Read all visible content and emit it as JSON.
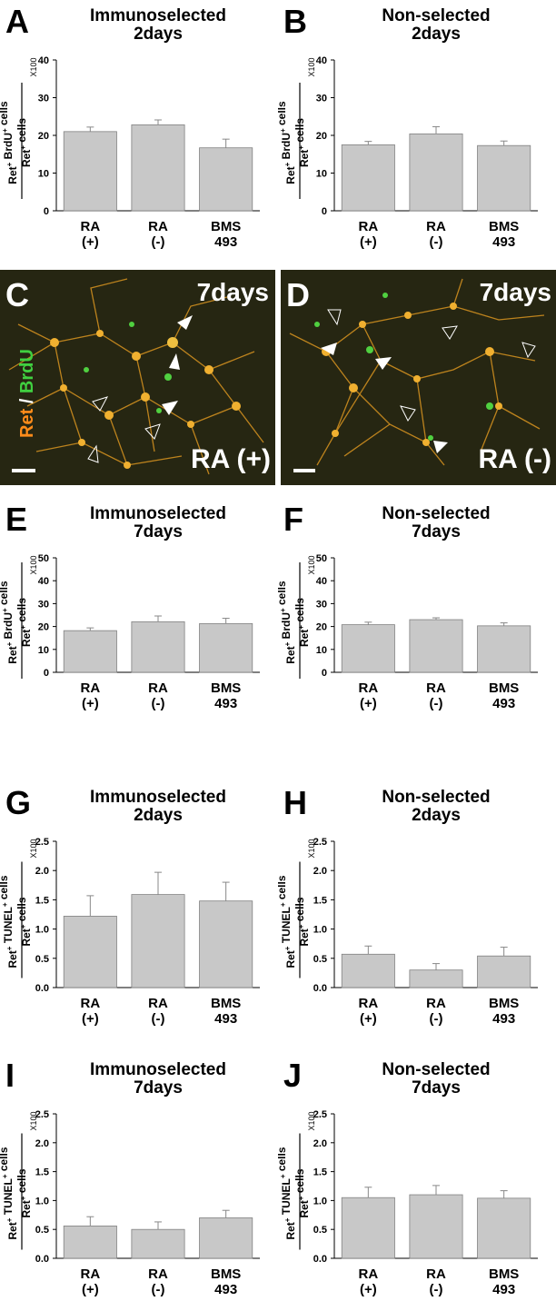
{
  "chart_data": [
    {
      "id": "A",
      "type": "bar",
      "title": [
        "Immunoselected",
        "2days"
      ],
      "ylabel": {
        "numerator": "Ret+ BrdU+ cells",
        "denominator": "Ret+ cells",
        "multiplier": "X100"
      },
      "categories": [
        [
          "RA",
          "(+)"
        ],
        [
          "RA",
          "(-)"
        ],
        [
          "BMS",
          "493"
        ]
      ],
      "values": [
        21.0,
        22.8,
        16.7
      ],
      "errors": [
        1.2,
        1.3,
        2.3
      ],
      "ylim": [
        0,
        40
      ],
      "yticks": [
        "0",
        "10",
        "20",
        "30",
        "40"
      ]
    },
    {
      "id": "B",
      "type": "bar",
      "title": [
        "Non-selected",
        "2days"
      ],
      "ylabel": {
        "numerator": "Ret+ BrdU+ cells",
        "denominator": "Ret+ cells",
        "multiplier": "X100"
      },
      "categories": [
        [
          "RA",
          "(+)"
        ],
        [
          "RA",
          "(-)"
        ],
        [
          "BMS",
          "493"
        ]
      ],
      "values": [
        17.5,
        20.4,
        17.3
      ],
      "errors": [
        0.9,
        1.9,
        1.2
      ],
      "ylim": [
        0,
        40
      ],
      "yticks": [
        "0",
        "10",
        "20",
        "30",
        "40"
      ]
    },
    {
      "id": "E",
      "type": "bar",
      "title": [
        "Immunoselected",
        "7days"
      ],
      "ylabel": {
        "numerator": "Ret+ BrdU+ cells",
        "denominator": "Ret+ cells",
        "multiplier": "X100"
      },
      "categories": [
        [
          "RA",
          "(+)"
        ],
        [
          "RA",
          "(-)"
        ],
        [
          "BMS",
          "493"
        ]
      ],
      "values": [
        18.2,
        22.1,
        21.3
      ],
      "errors": [
        1.2,
        2.5,
        2.3
      ],
      "ylim": [
        0,
        50
      ],
      "yticks": [
        "0",
        "10",
        "20",
        "30",
        "40",
        "50"
      ]
    },
    {
      "id": "F",
      "type": "bar",
      "title": [
        "Non-selected",
        "7days"
      ],
      "ylabel": {
        "numerator": "Ret+ BrdU+ cells",
        "denominator": "Ret+ cells",
        "multiplier": "X100"
      },
      "categories": [
        [
          "RA",
          "(+)"
        ],
        [
          "RA",
          "(-)"
        ],
        [
          "BMS",
          "493"
        ]
      ],
      "values": [
        20.8,
        23.0,
        20.3
      ],
      "errors": [
        1.1,
        0.8,
        1.3
      ],
      "ylim": [
        0,
        50
      ],
      "yticks": [
        "0",
        "10",
        "20",
        "30",
        "40",
        "50"
      ]
    },
    {
      "id": "G",
      "type": "bar",
      "title": [
        "Immunoselected",
        "2days"
      ],
      "ylabel": {
        "numerator": "Ret+ TUNEL+ cells",
        "denominator": "Ret+ cells",
        "multiplier": "X100"
      },
      "categories": [
        [
          "RA",
          "(+)"
        ],
        [
          "RA",
          "(-)"
        ],
        [
          "BMS",
          "493"
        ]
      ],
      "values": [
        1.22,
        1.59,
        1.48
      ],
      "errors": [
        0.35,
        0.38,
        0.32
      ],
      "ylim": [
        0,
        2.5
      ],
      "yticks": [
        "0.0",
        "0.5",
        "1.0",
        "1.5",
        "2.0",
        "2.5"
      ]
    },
    {
      "id": "H",
      "type": "bar",
      "title": [
        "Non-selected",
        "2days"
      ],
      "ylabel": {
        "numerator": "Ret+ TUNEL+ cells",
        "denominator": "Ret+ cells",
        "multiplier": "X100"
      },
      "categories": [
        [
          "RA",
          "(+)"
        ],
        [
          "RA",
          "(-)"
        ],
        [
          "BMS",
          "493"
        ]
      ],
      "values": [
        0.57,
        0.3,
        0.54
      ],
      "errors": [
        0.14,
        0.11,
        0.15
      ],
      "ylim": [
        0,
        2.5
      ],
      "yticks": [
        "0.0",
        "0.5",
        "1.0",
        "1.5",
        "2.0",
        "2.5"
      ]
    },
    {
      "id": "I",
      "type": "bar",
      "title": [
        "Immunoselected",
        "7days"
      ],
      "ylabel": {
        "numerator": "Ret+ TUNEL+ cells",
        "denominator": "Ret+ cells",
        "multiplier": "X100"
      },
      "categories": [
        [
          "RA",
          "(+)"
        ],
        [
          "RA",
          "(-)"
        ],
        [
          "BMS",
          "493"
        ]
      ],
      "values": [
        0.56,
        0.5,
        0.7
      ],
      "errors": [
        0.16,
        0.13,
        0.13
      ],
      "ylim": [
        0,
        2.5
      ],
      "yticks": [
        "0.0",
        "0.5",
        "1.0",
        "1.5",
        "2.0",
        "2.5"
      ]
    },
    {
      "id": "J",
      "type": "bar",
      "title": [
        "Non-selected",
        "7days"
      ],
      "ylabel": {
        "numerator": "Ret+ TUNEL+ cells",
        "denominator": "Ret+ cells",
        "multiplier": "X100"
      },
      "categories": [
        [
          "RA",
          "(+)"
        ],
        [
          "RA",
          "(-)"
        ],
        [
          "BMS",
          "493"
        ]
      ],
      "values": [
        1.05,
        1.1,
        1.04
      ],
      "errors": [
        0.18,
        0.16,
        0.13
      ],
      "ylim": [
        0,
        2.5
      ],
      "yticks": [
        "0.0",
        "0.5",
        "1.0",
        "1.5",
        "2.0",
        "2.5"
      ]
    }
  ],
  "micrographs": [
    {
      "id": "C",
      "day": "7days",
      "condition": "RA (+)",
      "stain_red": "Ret",
      "stain_sep": " / ",
      "stain_green": "BrdU"
    },
    {
      "id": "D",
      "day": "7days",
      "condition": "RA (-)"
    }
  ],
  "colors": {
    "bar": "#c8c8c8",
    "micro_bg": "#2a2a12",
    "neuron": "#e8a020",
    "brdu": "#40d040",
    "ret": "#ff8c1a"
  }
}
